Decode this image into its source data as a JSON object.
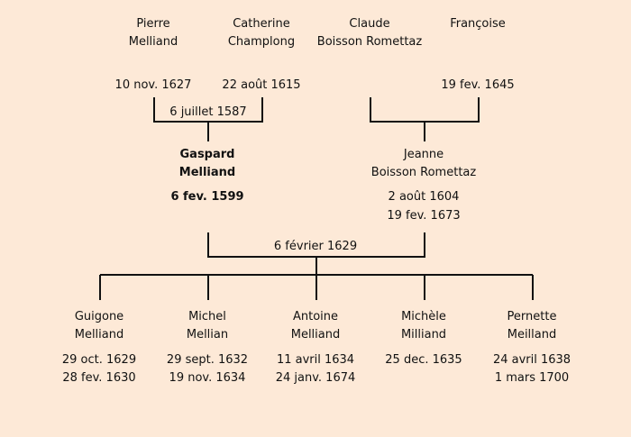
{
  "grandparents": [
    {
      "first": "Pierre",
      "last": "Melliand",
      "date": "10 nov. 1627"
    },
    {
      "first": "Catherine",
      "last": "Champlong",
      "date": "22 août 1615"
    },
    {
      "first": "Claude",
      "last": "Boisson Romettaz",
      "date": ""
    },
    {
      "first": "Françoise",
      "last": "",
      "date": "19 fev. 1645"
    }
  ],
  "grandparents_marriage_left": "6 juillet 1587",
  "parents": [
    {
      "first": "Gaspard",
      "last": "Melliand",
      "date1": "6 fev. 1599",
      "date2": "",
      "bold": true
    },
    {
      "first": "Jeanne",
      "last": "Boisson Romettaz",
      "date1": "2 août 1604",
      "date2": "19 fev. 1673"
    }
  ],
  "parents_marriage": "6 février 1629",
  "children": [
    {
      "first": "Guigone",
      "last": "Melliand",
      "date1": "29 oct. 1629",
      "date2": "28 fev. 1630"
    },
    {
      "first": "Michel",
      "last": "Mellian",
      "date1": "29 sept. 1632",
      "date2": "19 nov. 1634"
    },
    {
      "first": "Antoine",
      "last": "Melliand",
      "date1": "11 avril 1634",
      "date2": "24 janv. 1674"
    },
    {
      "first": "Michèle",
      "last": "Milliand",
      "date1": "25 dec. 1635",
      "date2": ""
    },
    {
      "first": "Pernette",
      "last": "Meilland",
      "date1": "24 avril 1638",
      "date2": "1 mars 1700"
    }
  ],
  "colors": {
    "background": "#fde9d7",
    "lines": "#111111"
  }
}
